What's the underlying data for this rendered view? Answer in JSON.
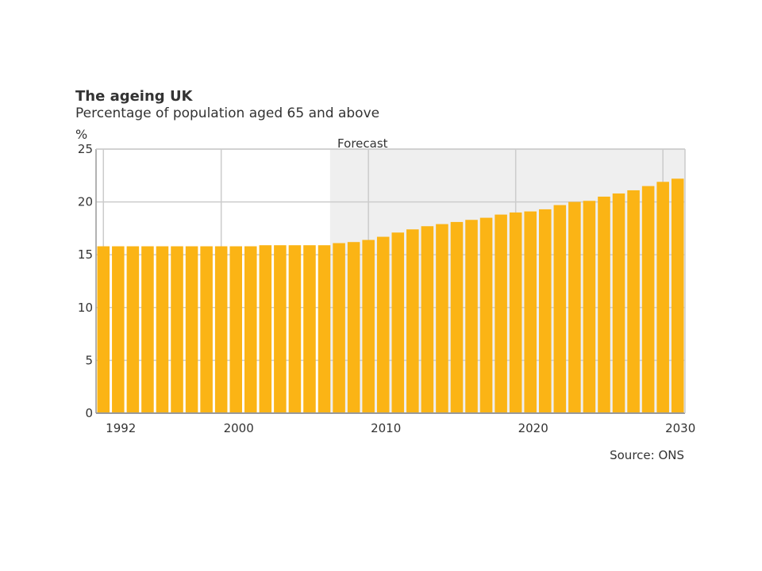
{
  "chart_data": {
    "type": "bar",
    "title": "The ageing UK",
    "subtitle": "Percentage of population aged 65 and above",
    "ylabel": "%",
    "xlabel": "",
    "ylim": [
      0,
      25
    ],
    "yticks": [
      0,
      5,
      10,
      15,
      20,
      25
    ],
    "xtick_labels": [
      "1992",
      "2000",
      "2010",
      "2020",
      "2030"
    ],
    "forecast_label": "Forecast",
    "forecast_start_year": 2008,
    "grid": true,
    "bar_color": "#FBB415",
    "forecast_shade_color": "#EFEFEF",
    "source": "Source: ONS",
    "categories": [
      1992,
      1993,
      1994,
      1995,
      1996,
      1997,
      1998,
      1999,
      2000,
      2001,
      2002,
      2003,
      2004,
      2005,
      2006,
      2007,
      2008,
      2009,
      2010,
      2011,
      2012,
      2013,
      2014,
      2015,
      2016,
      2017,
      2018,
      2019,
      2020,
      2021,
      2022,
      2023,
      2024,
      2025,
      2026,
      2027,
      2028,
      2029,
      2030,
      2031
    ],
    "values": [
      15.8,
      15.8,
      15.8,
      15.8,
      15.8,
      15.8,
      15.8,
      15.8,
      15.8,
      15.8,
      15.8,
      15.9,
      15.9,
      15.9,
      15.9,
      15.9,
      16.1,
      16.2,
      16.4,
      16.7,
      17.1,
      17.4,
      17.7,
      17.9,
      18.1,
      18.3,
      18.5,
      18.8,
      19.0,
      19.1,
      19.3,
      19.7,
      20.0,
      20.1,
      20.5,
      20.8,
      21.1,
      21.5,
      21.9,
      22.2
    ]
  }
}
